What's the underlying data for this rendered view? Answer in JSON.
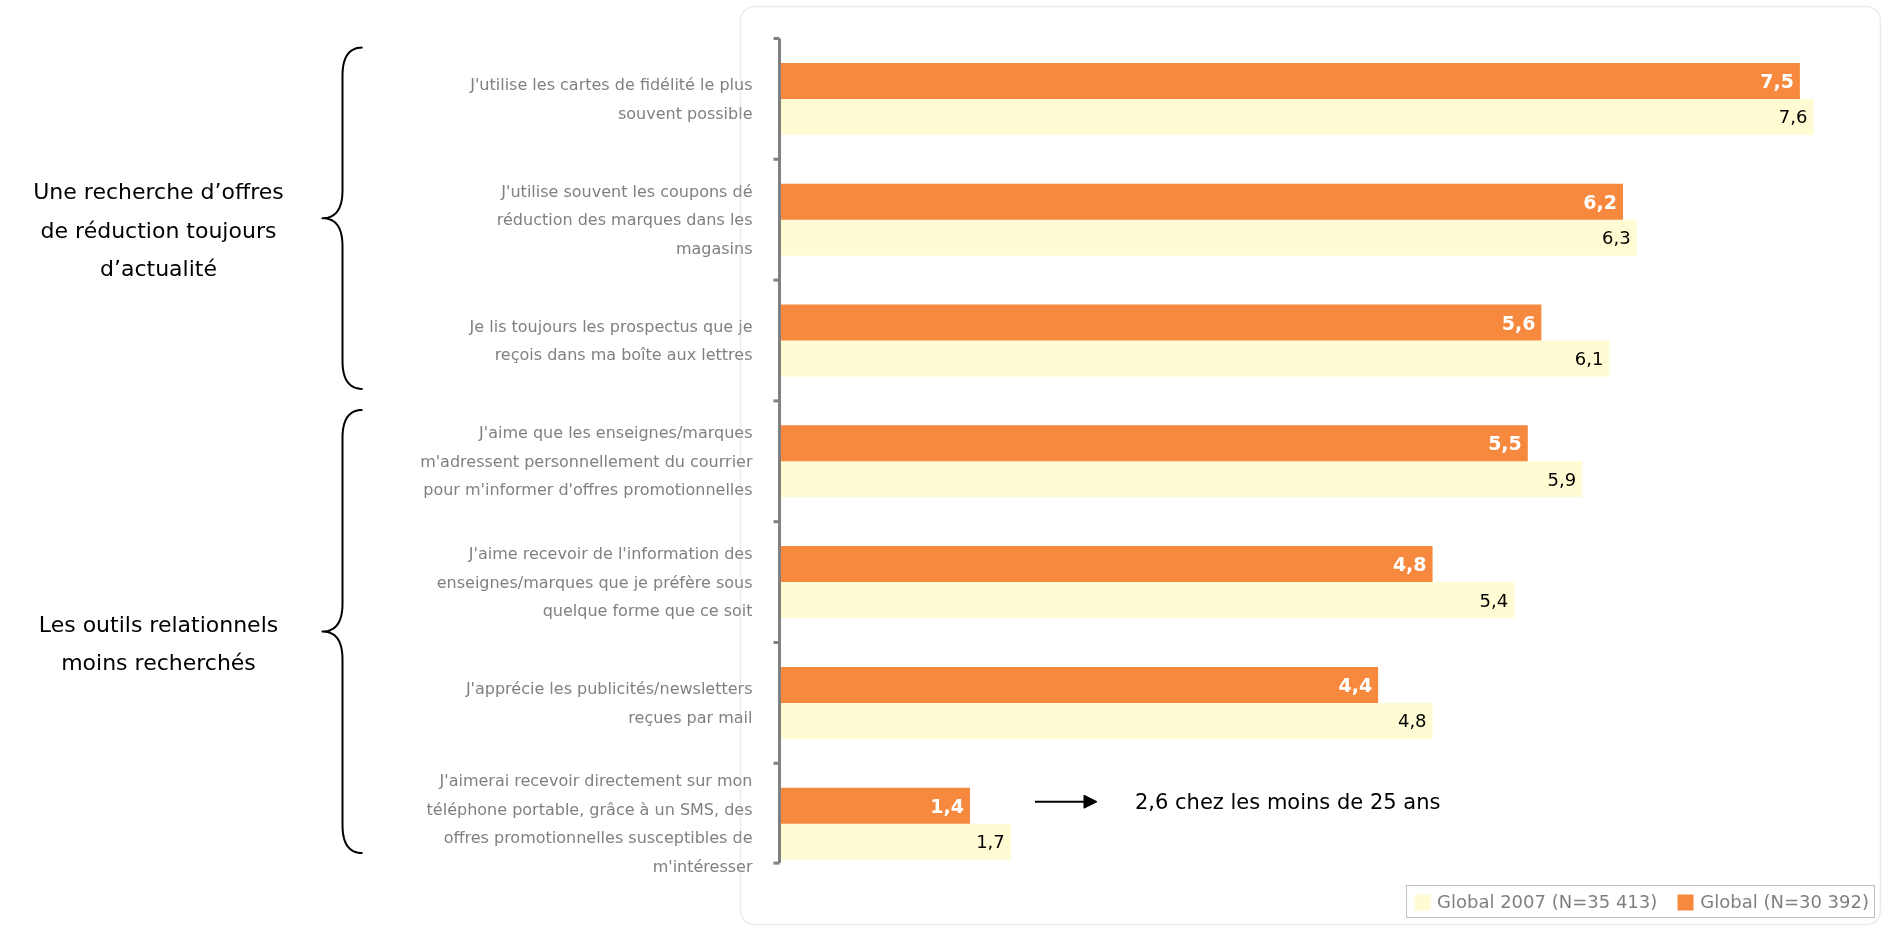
{
  "chart_data": {
    "type": "bar",
    "orientation": "horizontal",
    "categories": [
      "J'utilise les cartes de fidélité le plus\nsouvent possible",
      "J'utilise souvent les coupons dé\nréduction des marques dans les\nmagasins",
      "Je lis toujours les prospectus que je\nreçois dans ma boîte aux lettres",
      "J'aime que les enseignes/marques\nm'adressent personnellement du courrier\npour m'informer d'offres promotionnelles",
      "J'aime recevoir de l'information des\nenseignes/marques que je préfère sous\nquelque forme que ce soit",
      "J'apprécie les publicités/newsletters\nreçues par mail",
      "J'aimerai recevoir directement sur mon\ntéléphone portable, grâce à un SMS, des\noffres promotionnelles susceptibles de\nm'intéresser"
    ],
    "series": [
      {
        "name": "Global 2007 (N=35 413)",
        "color": "#fffbd2",
        "values": [
          7.6,
          6.3,
          6.1,
          5.9,
          5.4,
          4.8,
          1.7
        ],
        "value_labels": [
          "7,6",
          "6,3",
          "6,1",
          "5,9",
          "5,4",
          "4,8",
          "1,7"
        ]
      },
      {
        "name": "Global (N=30 392)",
        "color": "#f7893f",
        "values": [
          7.5,
          6.2,
          5.6,
          5.5,
          4.8,
          4.4,
          1.4
        ],
        "value_labels": [
          "7,5",
          "6,2",
          "5,6",
          "5,5",
          "4,8",
          "4,4",
          "1,4"
        ]
      }
    ],
    "legend": "bottom right",
    "annotations": [
      "Une recherche d’offres\nde réduction toujours\nd’actualité",
      "Les outils relationnels\nmoins recherchés",
      "2,6 chez les moins de 25 ans"
    ]
  }
}
